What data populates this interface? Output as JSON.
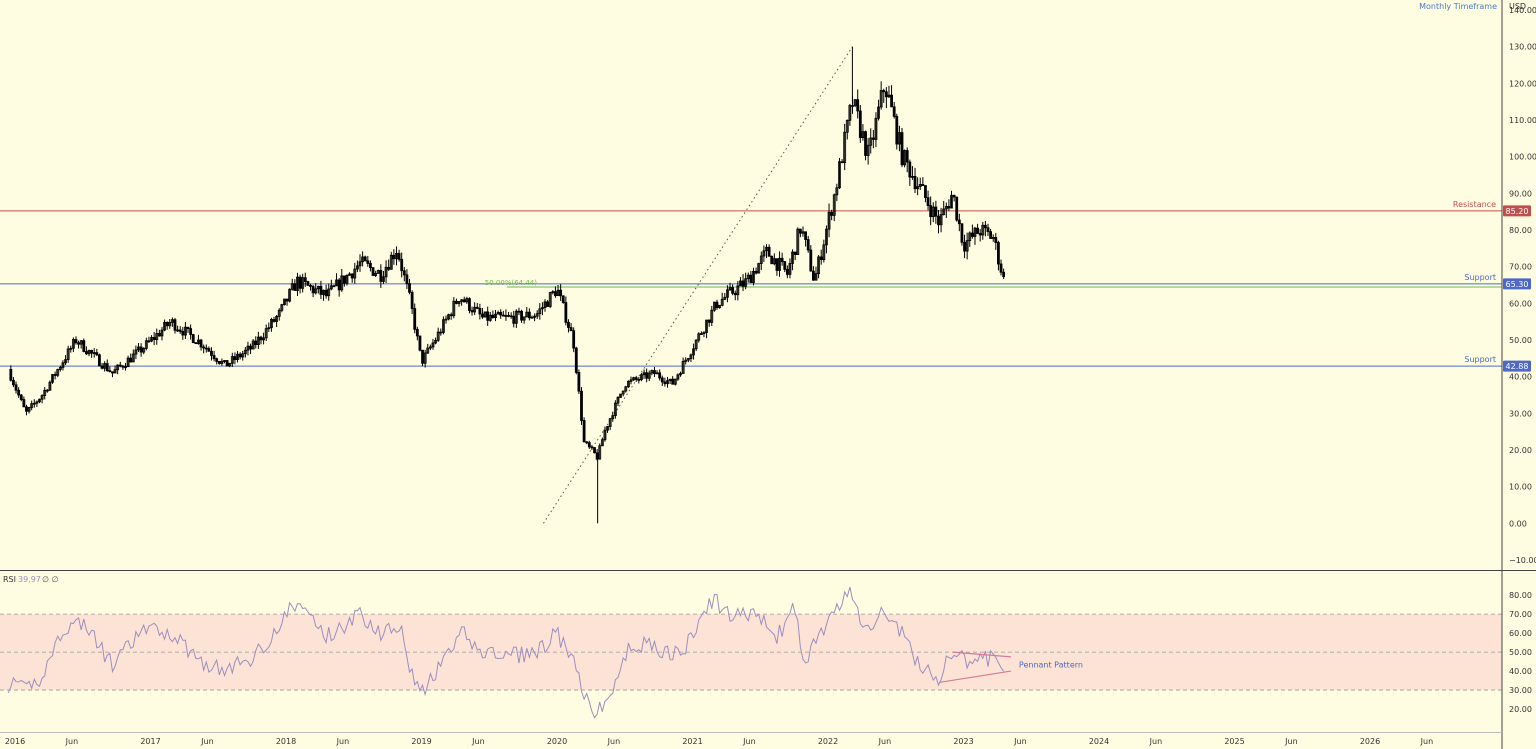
{
  "header": {
    "currency": "USD",
    "timeframe_label": "Monthly Timeframe"
  },
  "colors": {
    "background": "#fffde1",
    "candle": "#000000",
    "resistance": "#c0504d",
    "support": "#4e68c8",
    "fib": "#6fb84f",
    "rsi_line": "#9b8fc0",
    "rsi_band": "#fde3d6",
    "pennant": "#d57a9a",
    "axis_text": "#333333",
    "timeframe_text": "#4a7ac8"
  },
  "chart_data": [
    {
      "type": "candlestick",
      "ylim": [
        -10,
        140
      ],
      "y_ticks": [
        -10,
        0,
        10,
        20,
        30,
        40,
        50,
        60,
        70,
        80,
        90,
        100,
        110,
        120,
        130,
        140
      ],
      "x_ticks": [
        {
          "t": 2016.0,
          "label": "2016"
        },
        {
          "t": 2016.42,
          "label": "Jun"
        },
        {
          "t": 2017.0,
          "label": "2017"
        },
        {
          "t": 2017.42,
          "label": "Jun"
        },
        {
          "t": 2018.0,
          "label": "2018"
        },
        {
          "t": 2018.42,
          "label": "Jun"
        },
        {
          "t": 2019.0,
          "label": "2019"
        },
        {
          "t": 2019.42,
          "label": "Jun"
        },
        {
          "t": 2020.0,
          "label": "2020"
        },
        {
          "t": 2020.42,
          "label": "Jun"
        },
        {
          "t": 2021.0,
          "label": "2021"
        },
        {
          "t": 2021.42,
          "label": "Jun"
        },
        {
          "t": 2022.0,
          "label": "2022"
        },
        {
          "t": 2022.42,
          "label": "Jun"
        },
        {
          "t": 2023.0,
          "label": "2023"
        },
        {
          "t": 2023.42,
          "label": "Jun"
        },
        {
          "t": 2024.0,
          "label": "2024"
        },
        {
          "t": 2024.42,
          "label": "Jun"
        },
        {
          "t": 2025.0,
          "label": "2025"
        },
        {
          "t": 2025.42,
          "label": "Jun"
        },
        {
          "t": 2026.0,
          "label": "2026"
        },
        {
          "t": 2026.42,
          "label": "Jun"
        }
      ],
      "price_path": [
        [
          2015.95,
          42
        ],
        [
          2016.08,
          30
        ],
        [
          2016.2,
          35
        ],
        [
          2016.45,
          50
        ],
        [
          2016.72,
          41
        ],
        [
          2016.95,
          48
        ],
        [
          2017.15,
          55
        ],
        [
          2017.38,
          49
        ],
        [
          2017.55,
          43
        ],
        [
          2017.75,
          48
        ],
        [
          2017.95,
          57
        ],
        [
          2018.08,
          66
        ],
        [
          2018.3,
          62
        ],
        [
          2018.55,
          71
        ],
        [
          2018.7,
          68
        ],
        [
          2018.82,
          75
        ],
        [
          2018.92,
          60
        ],
        [
          2019.0,
          44
        ],
        [
          2019.1,
          50
        ],
        [
          2019.28,
          62
        ],
        [
          2019.45,
          56
        ],
        [
          2019.65,
          56
        ],
        [
          2019.85,
          57
        ],
        [
          2020.0,
          64
        ],
        [
          2020.12,
          50
        ],
        [
          2020.2,
          22
        ],
        [
          2020.3,
          18
        ],
        [
          2020.35,
          25
        ],
        [
          2020.5,
          38
        ],
        [
          2020.72,
          41
        ],
        [
          2020.85,
          38
        ],
        [
          2021.0,
          48
        ],
        [
          2021.18,
          60
        ],
        [
          2021.4,
          66
        ],
        [
          2021.55,
          74
        ],
        [
          2021.7,
          68
        ],
        [
          2021.8,
          81
        ],
        [
          2021.9,
          66
        ],
        [
          2022.05,
          90
        ],
        [
          2022.18,
          115
        ],
        [
          2022.3,
          100
        ],
        [
          2022.42,
          120
        ],
        [
          2022.55,
          100
        ],
        [
          2022.7,
          90
        ],
        [
          2022.82,
          82
        ],
        [
          2022.92,
          90
        ],
        [
          2023.0,
          76
        ],
        [
          2023.12,
          80
        ],
        [
          2023.22,
          78
        ],
        [
          2023.3,
          66
        ]
      ],
      "spikes": [
        [
          2022.18,
          130
        ],
        [
          2020.3,
          0
        ]
      ],
      "last_price_low": 65,
      "lines": [
        {
          "name": "Resistance",
          "value": 85.2,
          "value_label": "85.20",
          "kind": "resistance"
        },
        {
          "name": "Support",
          "value": 65.3,
          "value_label": "65.30",
          "kind": "support"
        },
        {
          "name": "Support",
          "value": 42.88,
          "value_label": "42.88",
          "kind": "support"
        }
      ],
      "fib": {
        "label": "50.00%(64.44)",
        "value": 64.44,
        "from_t": 2020.0
      },
      "trendline": {
        "from": [
          2019.9,
          0
        ],
        "to": [
          2022.18,
          130
        ]
      }
    },
    {
      "type": "line",
      "indicator": "RSI",
      "legend": {
        "name": "RSI",
        "value": "39.97",
        "extra": "∅ ∅"
      },
      "ylim": [
        10,
        88
      ],
      "y_ticks": [
        20,
        30,
        40,
        50,
        60,
        70,
        80
      ],
      "band": [
        30,
        70
      ],
      "midline": 50,
      "rsi_path": [
        [
          2015.95,
          33
        ],
        [
          2016.08,
          30
        ],
        [
          2016.2,
          37
        ],
        [
          2016.35,
          62
        ],
        [
          2016.5,
          66
        ],
        [
          2016.72,
          43
        ],
        [
          2016.95,
          62
        ],
        [
          2017.15,
          60
        ],
        [
          2017.38,
          45
        ],
        [
          2017.55,
          40
        ],
        [
          2017.75,
          47
        ],
        [
          2017.95,
          63
        ],
        [
          2018.05,
          75
        ],
        [
          2018.15,
          72
        ],
        [
          2018.3,
          58
        ],
        [
          2018.55,
          70
        ],
        [
          2018.7,
          60
        ],
        [
          2018.85,
          66
        ],
        [
          2018.92,
          40
        ],
        [
          2019.0,
          28
        ],
        [
          2019.1,
          38
        ],
        [
          2019.3,
          60
        ],
        [
          2019.45,
          50
        ],
        [
          2019.65,
          48
        ],
        [
          2019.85,
          50
        ],
        [
          2020.0,
          60
        ],
        [
          2020.15,
          40
        ],
        [
          2020.2,
          25
        ],
        [
          2020.3,
          18
        ],
        [
          2020.4,
          28
        ],
        [
          2020.55,
          55
        ],
        [
          2020.75,
          52
        ],
        [
          2020.9,
          48
        ],
        [
          2021.0,
          58
        ],
        [
          2021.15,
          78
        ],
        [
          2021.3,
          68
        ],
        [
          2021.45,
          72
        ],
        [
          2021.62,
          57
        ],
        [
          2021.75,
          74
        ],
        [
          2021.82,
          44
        ],
        [
          2021.92,
          58
        ],
        [
          2022.05,
          70
        ],
        [
          2022.15,
          82
        ],
        [
          2022.28,
          62
        ],
        [
          2022.42,
          72
        ],
        [
          2022.55,
          60
        ],
        [
          2022.65,
          45
        ],
        [
          2022.82,
          36
        ],
        [
          2022.92,
          50
        ],
        [
          2023.05,
          44
        ],
        [
          2023.2,
          47
        ],
        [
          2023.3,
          40
        ]
      ],
      "pennant": {
        "label": "Pennant Pattern",
        "upper": [
          [
            2022.92,
            50
          ],
          [
            2023.35,
            47.5
          ]
        ],
        "lower": [
          [
            2022.82,
            34
          ],
          [
            2023.35,
            40
          ]
        ]
      }
    }
  ]
}
